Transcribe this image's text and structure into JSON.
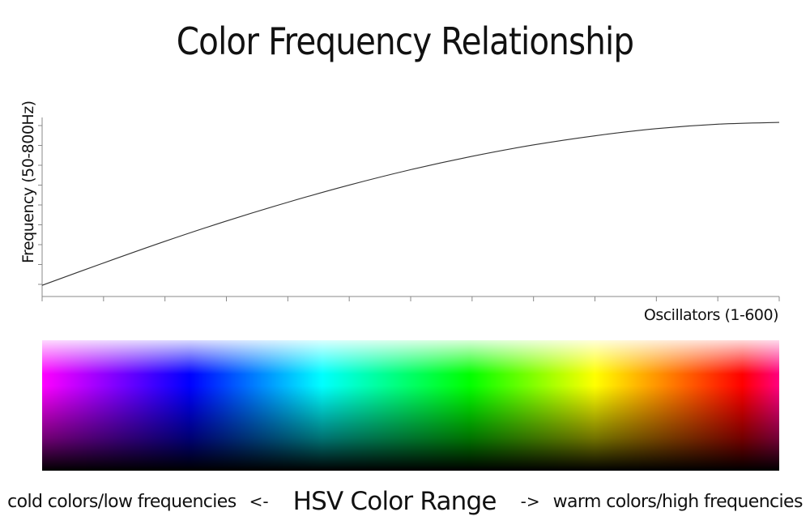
{
  "chart_data": {
    "type": "line",
    "title": "Color Frequency Relationship",
    "xlabel": "Oscillators (1-600)",
    "ylabel": "Frequency (50-800Hz)",
    "x_ticks_count": 13,
    "y_ticks_count": 9,
    "grid": false,
    "series": [
      {
        "x": [
          1,
          50,
          100,
          150,
          200,
          250,
          300,
          350,
          400,
          450,
          500,
          550,
          600
        ],
        "y": [
          50,
          148,
          245,
          336,
          420,
          497,
          566,
          626,
          677,
          718,
          750,
          770,
          778
        ]
      }
    ],
    "xlim": [
      1,
      600
    ],
    "ylim": [
      0,
      800
    ],
    "line_color": "#333333",
    "color_bar": {
      "stops": [
        "#ff00ff",
        "#0000ff",
        "#00ffff",
        "#00ff00",
        "#ffff00",
        "#ff8000",
        "#ff0000",
        "#ff0080"
      ]
    }
  },
  "caption": {
    "left": "cold colors/low frequencies",
    "left_arrow": "<-",
    "center": "HSV Color Range",
    "right_arrow": "->",
    "right": "warm colors/high frequencies"
  }
}
